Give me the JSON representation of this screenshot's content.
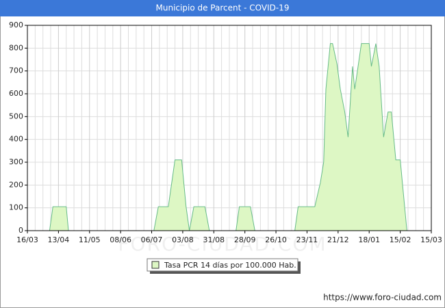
{
  "chart_data": {
    "type": "area",
    "title": "Municipio de Parcent - COVID-19",
    "watermark": "FORO-CIUDAD.COM",
    "source": "https://www.foro-ciudad.com",
    "x": [
      20,
      23,
      35,
      37,
      114,
      118,
      127,
      133,
      139,
      143,
      146,
      150,
      160,
      164,
      188,
      191,
      201,
      205,
      241,
      244,
      259,
      264,
      267,
      269,
      273,
      275,
      279,
      282,
      286,
      289,
      293,
      295,
      301,
      308,
      310,
      314,
      317,
      321,
      325,
      328,
      332,
      336,
      342
    ],
    "series": [
      {
        "name": "Tasa PCR 14 días por 100.000 Hab.",
        "color": "#66bb88",
        "fill": "#ddf7c4",
        "values": [
          0,
          105,
          105,
          0,
          0,
          105,
          105,
          310,
          310,
          105,
          0,
          105,
          105,
          0,
          0,
          105,
          105,
          0,
          0,
          105,
          105,
          210,
          300,
          620,
          820,
          820,
          730,
          620,
          520,
          410,
          720,
          620,
          820,
          820,
          720,
          820,
          720,
          410,
          520,
          520,
          310,
          310,
          0
        ]
      }
    ],
    "xlim": [
      0,
      364
    ],
    "xticks": [
      {
        "value": 0,
        "label": "16/03"
      },
      {
        "value": 28,
        "label": "13/04"
      },
      {
        "value": 56,
        "label": "11/05"
      },
      {
        "value": 84,
        "label": "08/06"
      },
      {
        "value": 112,
        "label": "06/07"
      },
      {
        "value": 140,
        "label": "03/08"
      },
      {
        "value": 168,
        "label": "31/08"
      },
      {
        "value": 196,
        "label": "28/09"
      },
      {
        "value": 224,
        "label": "26/10"
      },
      {
        "value": 252,
        "label": "23/11"
      },
      {
        "value": 280,
        "label": "21/12"
      },
      {
        "value": 308,
        "label": "18/01"
      },
      {
        "value": 336,
        "label": "15/02"
      },
      {
        "value": 364,
        "label": "15/03"
      }
    ],
    "ylim": [
      0,
      900
    ],
    "yticks": [
      0,
      100,
      200,
      300,
      400,
      500,
      600,
      700,
      800,
      900
    ],
    "grid": true
  }
}
